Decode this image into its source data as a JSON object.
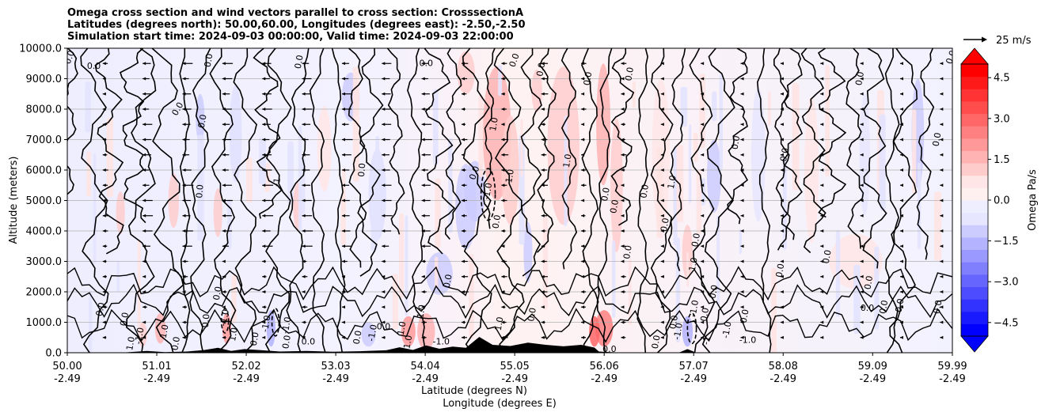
{
  "chart_data": {
    "type": "contourf",
    "title_lines": [
      "Omega cross section and wind vectors parallel to cross section: CrosssectionA",
      "Latitudes (degrees north): 50.00,60.00, Longitudes (degrees east): -2.50,-2.50",
      "Simulation start time: 2024-09-03 00:00:00, Valid time: 2024-09-03 22:00:00"
    ],
    "ylabel": "Altitude (meters)",
    "xlabel_lines": [
      "Latitude (degrees N)",
      "Longitude (degrees E)"
    ],
    "ylim": [
      0,
      10000
    ],
    "y_ticks": [
      {
        "value": 0,
        "label": "0.0"
      },
      {
        "value": 1000,
        "label": "1000.0"
      },
      {
        "value": 2000,
        "label": "2000.0"
      },
      {
        "value": 3000,
        "label": "3000.0"
      },
      {
        "value": 4000,
        "label": "4000.0"
      },
      {
        "value": 5000,
        "label": "5000.0"
      },
      {
        "value": 6000,
        "label": "6000.0"
      },
      {
        "value": 7000,
        "label": "7000.0"
      },
      {
        "value": 8000,
        "label": "8000.0"
      },
      {
        "value": 9000,
        "label": "9000.0"
      },
      {
        "value": 10000,
        "label": "10000.0"
      }
    ],
    "xlim": [
      50.0,
      59.99
    ],
    "x_ticks": [
      {
        "lat": 50.0,
        "lat_label": "50.00",
        "lon_label": "-2.49"
      },
      {
        "lat": 51.01,
        "lat_label": "51.01",
        "lon_label": "-2.49"
      },
      {
        "lat": 52.02,
        "lat_label": "52.02",
        "lon_label": "-2.49"
      },
      {
        "lat": 53.03,
        "lat_label": "53.03",
        "lon_label": "-2.49"
      },
      {
        "lat": 54.04,
        "lat_label": "54.04",
        "lon_label": "-2.49"
      },
      {
        "lat": 55.05,
        "lat_label": "55.05",
        "lon_label": "-2.49"
      },
      {
        "lat": 56.06,
        "lat_label": "56.06",
        "lon_label": "-2.49"
      },
      {
        "lat": 57.07,
        "lat_label": "57.07",
        "lon_label": "-2.49"
      },
      {
        "lat": 58.08,
        "lat_label": "58.08",
        "lon_label": "-2.49"
      },
      {
        "lat": 59.09,
        "lat_label": "59.09",
        "lon_label": "-2.49"
      },
      {
        "lat": 59.99,
        "lat_label": "59.99",
        "lon_label": "-2.49"
      }
    ],
    "grid": "horizontal",
    "colorbar": {
      "label": "Omega Pa/s",
      "min": -5.0,
      "max": 5.0,
      "extend": "both",
      "tick_values": [
        4.5,
        3.0,
        1.5,
        0.0,
        -1.5,
        -3.0,
        -4.5
      ],
      "tick_labels": [
        "4.5",
        "3.0",
        "1.5",
        "0.0",
        "−1.5",
        "−3.0",
        "−4.5"
      ],
      "colors_low_to_high": [
        "#0000ff",
        "#1a1aff",
        "#3333ff",
        "#4d4dff",
        "#6666ff",
        "#8080ff",
        "#9999ff",
        "#b3b3ff",
        "#ccccff",
        "#e6e6ff",
        "#eeeeff",
        "#fff0f0",
        "#ffe6e6",
        "#ffcccc",
        "#ffb3b3",
        "#ff9999",
        "#ff8080",
        "#ff6666",
        "#ff4d4d",
        "#ff3333",
        "#ff1a1a",
        "#ff0000"
      ]
    },
    "quiver_key": {
      "label": "25 m/s",
      "speed": 25
    },
    "contour_labels": [
      {
        "lat": 50.03,
        "alt": 9700,
        "text": "0.0",
        "rot": -70
      },
      {
        "lat": 50.3,
        "alt": 9400,
        "text": "0.0",
        "rot": 0
      },
      {
        "lat": 50.38,
        "alt": 1420,
        "text": "0.0",
        "rot": -75
      },
      {
        "lat": 50.65,
        "alt": 1100,
        "text": "0.0",
        "rot": -80
      },
      {
        "lat": 50.72,
        "alt": 300,
        "text": "1.0",
        "rot": -80
      },
      {
        "lat": 50.82,
        "alt": 550,
        "text": "-1.0",
        "rot": -80
      },
      {
        "lat": 51.1,
        "alt": 700,
        "text": "1.0",
        "rot": -80
      },
      {
        "lat": 51.23,
        "alt": 300,
        "text": "0.0",
        "rot": -80
      },
      {
        "lat": 51.25,
        "alt": 8000,
        "text": "0.0",
        "rot": -60
      },
      {
        "lat": 51.5,
        "alt": 5300,
        "text": "0.0",
        "rot": -85
      },
      {
        "lat": 51.57,
        "alt": 1050,
        "text": "0.0",
        "rot": -85
      },
      {
        "lat": 51.53,
        "alt": 7600,
        "text": "0.0",
        "rot": -80
      },
      {
        "lat": 51.6,
        "alt": 9600,
        "text": "0.0",
        "rot": -80
      },
      {
        "lat": 51.7,
        "alt": 1950,
        "text": "0.0",
        "rot": -80
      },
      {
        "lat": 51.78,
        "alt": 1150,
        "text": "-1.0",
        "rot": -80
      },
      {
        "lat": 51.88,
        "alt": 600,
        "text": "1.0",
        "rot": -80
      },
      {
        "lat": 52.12,
        "alt": 450,
        "text": "0.0",
        "rot": -80
      },
      {
        "lat": 52.25,
        "alt": 950,
        "text": "-1.0",
        "rot": -80
      },
      {
        "lat": 52.37,
        "alt": 5600,
        "text": "-1",
        "rot": -80
      },
      {
        "lat": 52.48,
        "alt": 900,
        "text": "-1.0",
        "rot": -80
      },
      {
        "lat": 52.48,
        "alt": 350,
        "text": "0.0",
        "rot": -80
      },
      {
        "lat": 52.72,
        "alt": 350,
        "text": "0.0",
        "rot": 0
      },
      {
        "lat": 52.62,
        "alt": 9550,
        "text": "0.0",
        "rot": -80
      },
      {
        "lat": 53.33,
        "alt": 6000,
        "text": "0.0",
        "rot": -85
      },
      {
        "lat": 53.28,
        "alt": 500,
        "text": "0.0",
        "rot": -80
      },
      {
        "lat": 53.45,
        "alt": 650,
        "text": "-1.0",
        "rot": -80
      },
      {
        "lat": 53.57,
        "alt": 850,
        "text": "0.0",
        "rot": 0
      },
      {
        "lat": 53.78,
        "alt": 800,
        "text": "1.0",
        "rot": -80
      },
      {
        "lat": 53.85,
        "alt": 350,
        "text": "1.0",
        "rot": -80
      },
      {
        "lat": 54.0,
        "alt": 1350,
        "text": "1.0",
        "rot": -80
      },
      {
        "lat": 54.05,
        "alt": 9500,
        "text": "0.0",
        "rot": 0
      },
      {
        "lat": 54.22,
        "alt": 350,
        "text": "-1.0",
        "rot": 0
      },
      {
        "lat": 54.3,
        "alt": 2350,
        "text": "0.0",
        "rot": -80
      },
      {
        "lat": 54.6,
        "alt": 5900,
        "text": "0.0",
        "rot": -70
      },
      {
        "lat": 54.75,
        "alt": 5300,
        "text": "-1.0",
        "rot": -80
      },
      {
        "lat": 54.82,
        "alt": 7500,
        "text": "1.0",
        "rot": -80
      },
      {
        "lat": 54.85,
        "alt": 4300,
        "text": "0.0",
        "rot": -80
      },
      {
        "lat": 54.88,
        "alt": 950,
        "text": "1.0",
        "rot": -80
      },
      {
        "lat": 55.0,
        "alt": 5800,
        "text": "1.0",
        "rot": -80
      },
      {
        "lat": 55.05,
        "alt": 9600,
        "text": "0.0",
        "rot": -70
      },
      {
        "lat": 55.25,
        "alt": 1250,
        "text": "0.0",
        "rot": -80
      },
      {
        "lat": 55.35,
        "alt": 9300,
        "text": "0.0",
        "rot": -80
      },
      {
        "lat": 55.65,
        "alt": 6300,
        "text": "1.0",
        "rot": -80
      },
      {
        "lat": 55.88,
        "alt": 9000,
        "text": "0.0",
        "rot": -80
      },
      {
        "lat": 56.08,
        "alt": 5200,
        "text": "0.0",
        "rot": -80
      },
      {
        "lat": 56.12,
        "alt": 100,
        "text": "0.0",
        "rot": 0
      },
      {
        "lat": 56.18,
        "alt": 4800,
        "text": "0.0",
        "rot": -80
      },
      {
        "lat": 56.33,
        "alt": 3300,
        "text": "0.0",
        "rot": -80
      },
      {
        "lat": 56.35,
        "alt": 9150,
        "text": "0.0",
        "rot": -80
      },
      {
        "lat": 56.52,
        "alt": 5300,
        "text": "0.0",
        "rot": -80
      },
      {
        "lat": 56.65,
        "alt": 350,
        "text": "0.0",
        "rot": -80
      },
      {
        "lat": 56.83,
        "alt": 5600,
        "text": "1.0",
        "rot": -80
      },
      {
        "lat": 56.75,
        "alt": 4200,
        "text": "0.0",
        "rot": -80
      },
      {
        "lat": 56.85,
        "alt": 1000,
        "text": "0.0",
        "rot": -80
      },
      {
        "lat": 56.9,
        "alt": 700,
        "text": "-1.0",
        "rot": -80
      },
      {
        "lat": 57.1,
        "alt": 3700,
        "text": "0.0",
        "rot": -80
      },
      {
        "lat": 57.07,
        "alt": 2900,
        "text": "1.0",
        "rot": -80
      },
      {
        "lat": 57.08,
        "alt": 1450,
        "text": "-1.0",
        "rot": -80
      },
      {
        "lat": 57.2,
        "alt": 1250,
        "text": "0.0",
        "rot": -80
      },
      {
        "lat": 57.22,
        "alt": 400,
        "text": "-1",
        "rot": -80
      },
      {
        "lat": 57.3,
        "alt": 2000,
        "text": "0.0",
        "rot": -80
      },
      {
        "lat": 57.45,
        "alt": 750,
        "text": "-1.0",
        "rot": -80
      },
      {
        "lat": 57.55,
        "alt": 6900,
        "text": "0.0",
        "rot": -80
      },
      {
        "lat": 57.65,
        "alt": 1200,
        "text": "0.0",
        "rot": -80
      },
      {
        "lat": 57.68,
        "alt": 400,
        "text": "-1.0",
        "rot": 0
      },
      {
        "lat": 58.05,
        "alt": 2700,
        "text": "0.0",
        "rot": -80
      },
      {
        "lat": 58.1,
        "alt": 6500,
        "text": "0.0",
        "rot": -80
      },
      {
        "lat": 58.58,
        "alt": 3150,
        "text": "0.0",
        "rot": -80
      },
      {
        "lat": 58.95,
        "alt": 9000,
        "text": "0.0",
        "rot": -80
      },
      {
        "lat": 59.03,
        "alt": 1450,
        "text": "0.0",
        "rot": 0
      },
      {
        "lat": 59.05,
        "alt": 2300,
        "text": "0.0",
        "rot": -80
      },
      {
        "lat": 59.22,
        "alt": 1500,
        "text": "0.0",
        "rot": -80
      },
      {
        "lat": 59.4,
        "alt": 1550,
        "text": "0.0",
        "rot": -80
      },
      {
        "lat": 59.82,
        "alt": 7000,
        "text": "0.0",
        "rot": -80
      },
      {
        "lat": 59.83,
        "alt": 1500,
        "text": "0.0",
        "rot": -80
      },
      {
        "lat": 59.98,
        "alt": 9700,
        "text": "0.0",
        "rot": -70
      }
    ]
  }
}
